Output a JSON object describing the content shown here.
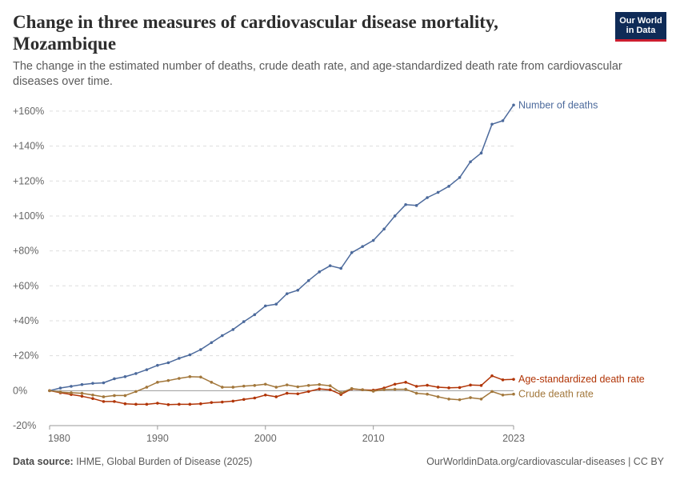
{
  "header": {
    "title": "Change in three measures of cardiovascular disease mortality, Mozambique",
    "subtitle": "The change in the estimated number of deaths, crude death rate, and age-standardized death rate from cardiovascular diseases over time."
  },
  "logo": {
    "line1": "Our World",
    "line2": "in Data"
  },
  "footer": {
    "source_label": "Data source:",
    "source_text": "IHME, Global Burden of Disease (2025)",
    "url_text": "OurWorldinData.org/cardiovascular-diseases | CC BY"
  },
  "colors": {
    "deaths": "#4c6a9c",
    "age_standardized": "#b13507",
    "crude": "#a2773b",
    "gridline": "#dddddd",
    "zero_line": "#9a9a9a",
    "tick_text": "#666666"
  },
  "chart_data": {
    "type": "line",
    "x": [
      1980,
      1981,
      1982,
      1983,
      1984,
      1985,
      1986,
      1987,
      1988,
      1989,
      1990,
      1991,
      1992,
      1993,
      1994,
      1995,
      1996,
      1997,
      1998,
      1999,
      2000,
      2001,
      2002,
      2003,
      2004,
      2005,
      2006,
      2007,
      2008,
      2009,
      2010,
      2011,
      2012,
      2013,
      2014,
      2015,
      2016,
      2017,
      2018,
      2019,
      2020,
      2021,
      2022,
      2023
    ],
    "xlim": [
      1980,
      2023
    ],
    "x_ticks": [
      "1980",
      "1990",
      "2000",
      "2010",
      "2023"
    ],
    "ylim": [
      -20,
      165
    ],
    "y_ticks": [
      -20,
      0,
      20,
      40,
      60,
      80,
      100,
      120,
      140,
      160
    ],
    "y_tick_labels": [
      "-20%",
      "0%",
      "+20%",
      "+40%",
      "+60%",
      "+80%",
      "+100%",
      "+120%",
      "+140%",
      "+160%"
    ],
    "grid": true,
    "legend": "line-end labels",
    "series": [
      {
        "name": "Number of deaths",
        "values": [
          0,
          1.5,
          2.5,
          3.5,
          4.2,
          4.5,
          6.8,
          8,
          9.8,
          12,
          14.5,
          16,
          18.5,
          20.5,
          23.5,
          27.5,
          31.5,
          35,
          39.5,
          43.5,
          48.5,
          49.5,
          55.5,
          57.5,
          63,
          68,
          71.5,
          70,
          79,
          82.5,
          86,
          92.5,
          100,
          106.5,
          106,
          110.5,
          113.5,
          117,
          122,
          131,
          136,
          152.5,
          154.5,
          163.5
        ]
      },
      {
        "name": "Age-standardized death rate",
        "values": [
          0,
          -1.2,
          -2.2,
          -3.2,
          -4.5,
          -6.2,
          -6.2,
          -7.5,
          -7.8,
          -7.8,
          -7.2,
          -8,
          -7.8,
          -7.8,
          -7.5,
          -6.8,
          -6.5,
          -6,
          -5,
          -4.2,
          -2.5,
          -3.5,
          -1.5,
          -1.8,
          -0.5,
          1,
          0.5,
          -2.2,
          1,
          0.5,
          0.3,
          1.5,
          3.7,
          4.8,
          2.5,
          3.1,
          2,
          1.6,
          1.8,
          3.2,
          3,
          8.5,
          6.2,
          6.5
        ]
      },
      {
        "name": "Crude death rate",
        "values": [
          0,
          -0.8,
          -1.2,
          -1.5,
          -2.5,
          -3.5,
          -2.8,
          -2.8,
          -0.5,
          2,
          4.8,
          5.8,
          7,
          8,
          7.8,
          4.8,
          2,
          2,
          2.6,
          3,
          3.7,
          2,
          3.3,
          2.2,
          3,
          3.5,
          2.8,
          -1.2,
          1.2,
          0.5,
          -0.3,
          0.6,
          0.8,
          0.8,
          -1.5,
          -2,
          -3.5,
          -4.8,
          -5.2,
          -4,
          -4.8,
          -0.5,
          -2.5,
          -2
        ]
      }
    ]
  }
}
